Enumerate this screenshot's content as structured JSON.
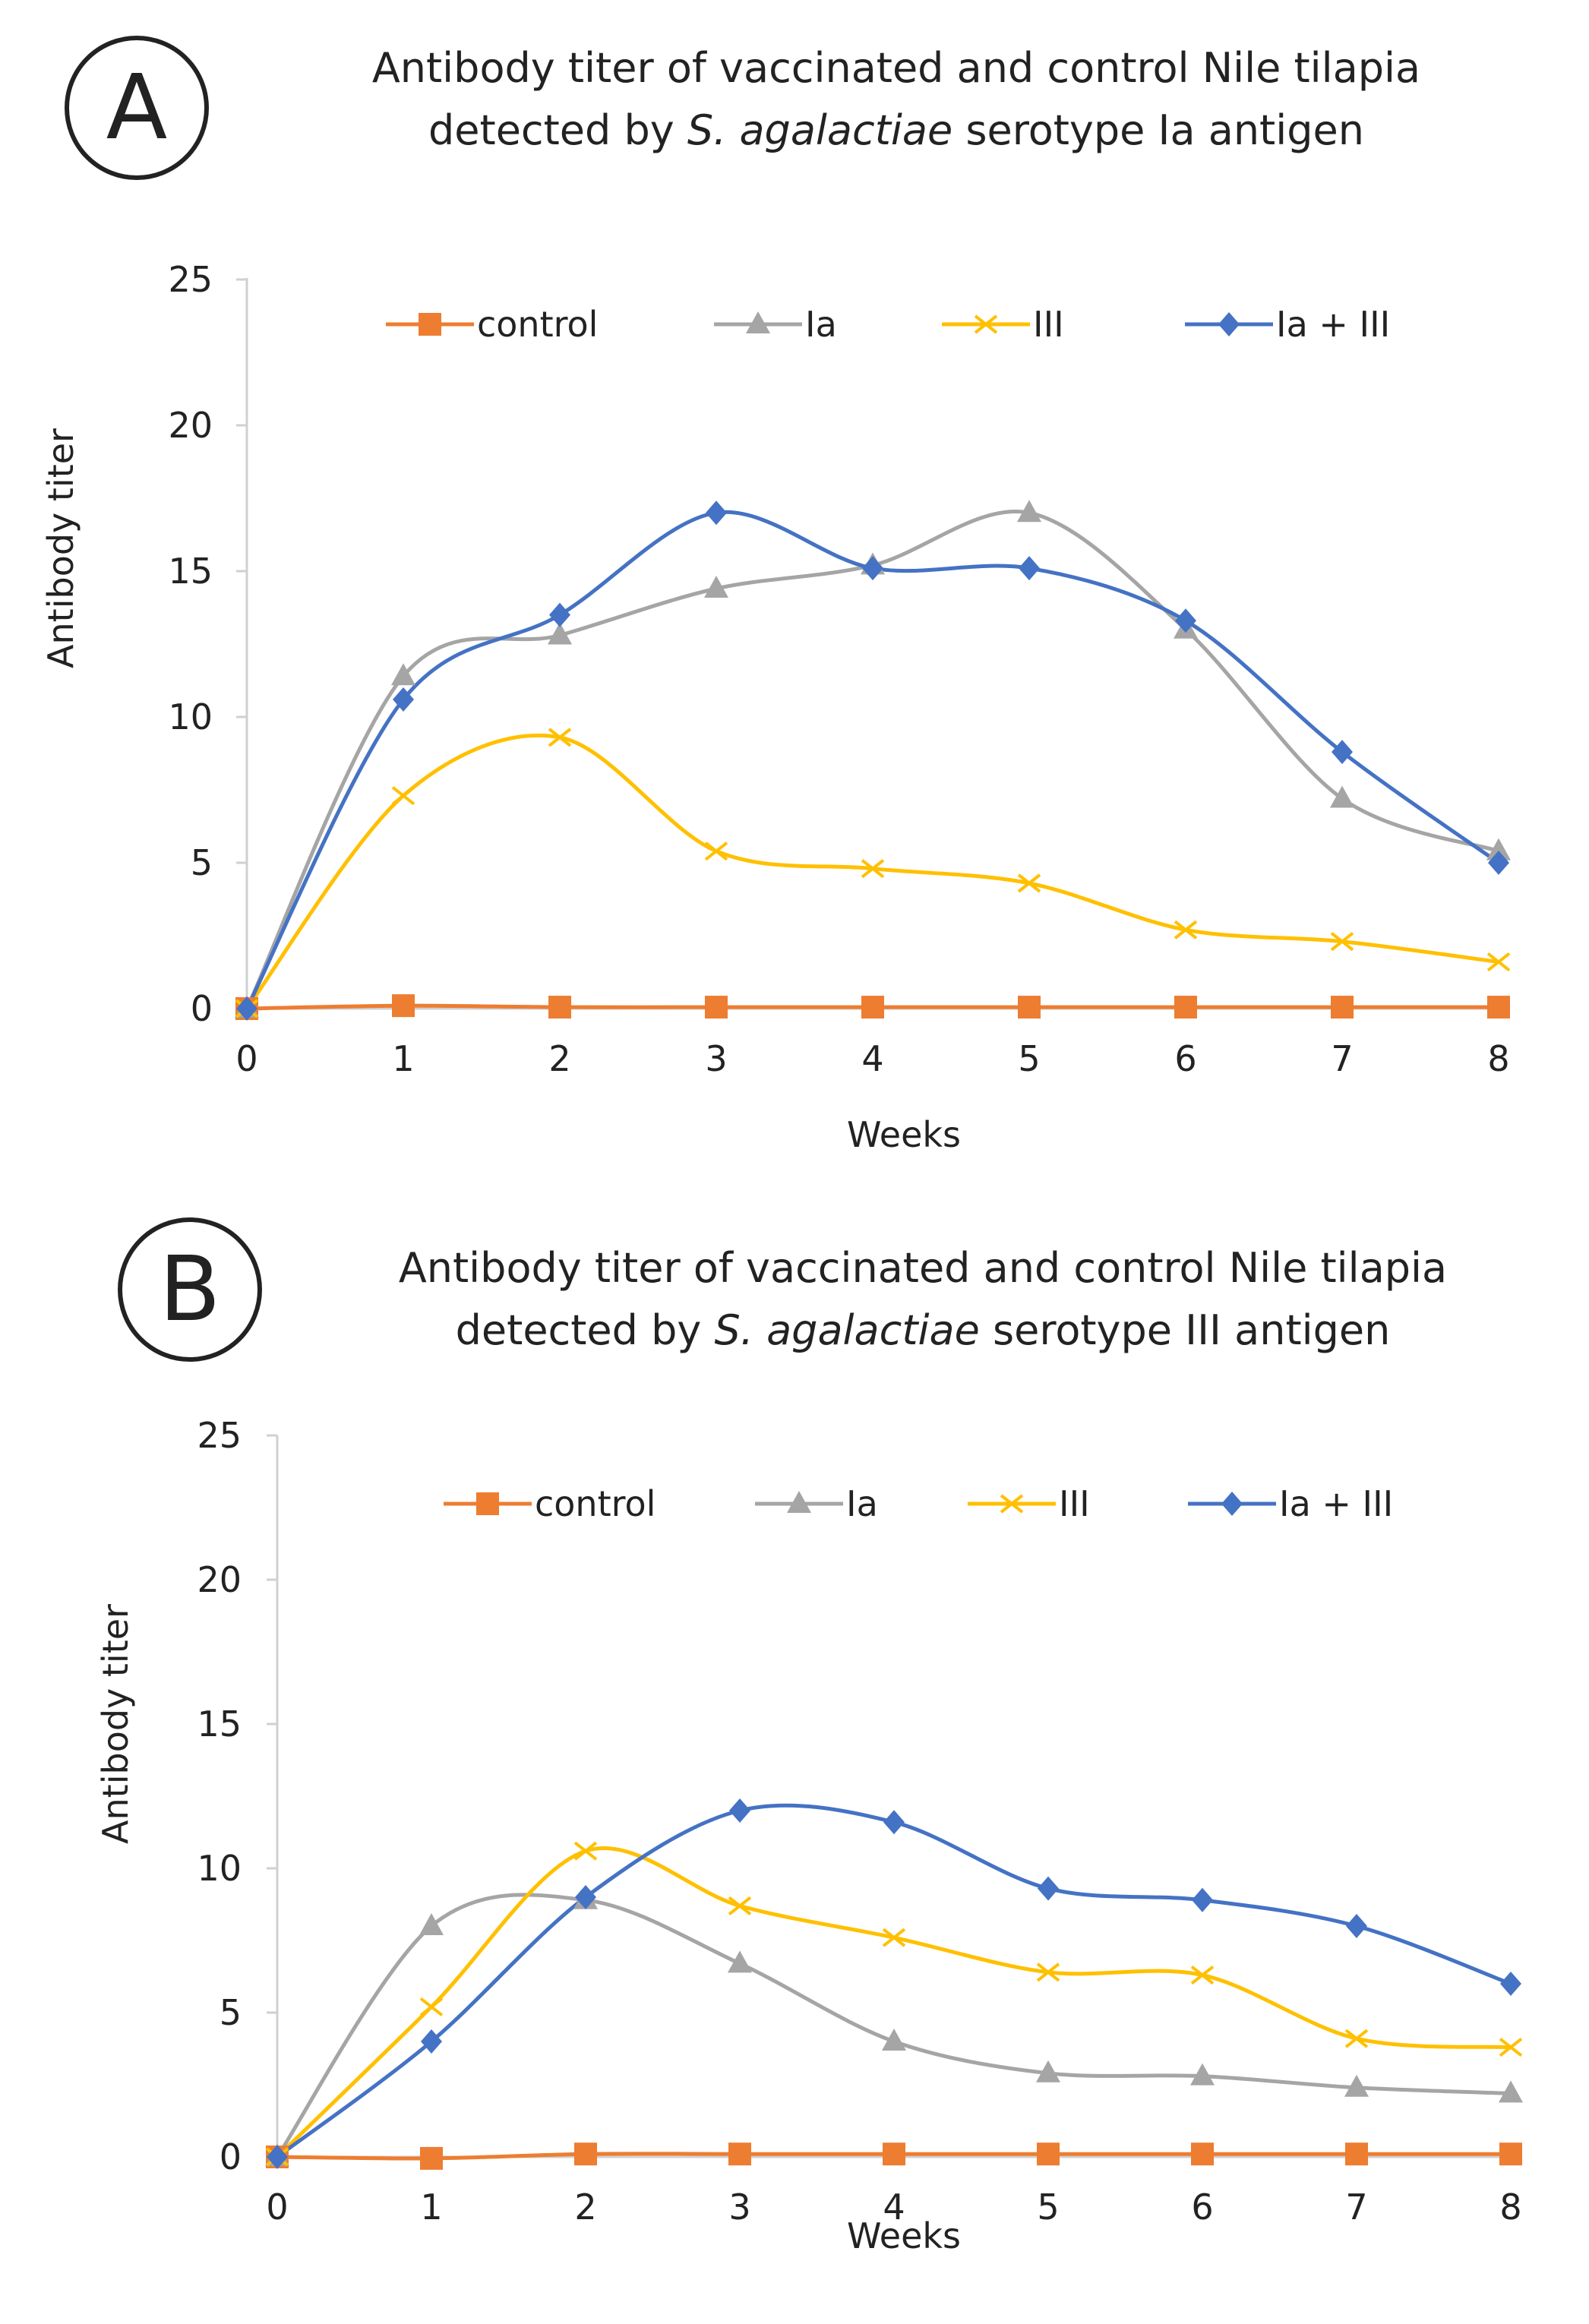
{
  "chart_data": [
    {
      "type": "line",
      "panel_label": "A",
      "title_line1": "Antibody titer of vaccinated and control Nile tilapia",
      "title_line2_pre": "detected by ",
      "title_line2_italic": "S. agalactiae",
      "title_line2_post": " serotype Ia antigen",
      "xlabel": "Weeks",
      "ylabel": "Antibody  titer",
      "x": [
        0,
        1,
        2,
        3,
        4,
        5,
        6,
        7,
        8
      ],
      "ylim": [
        0,
        25
      ],
      "yticks": [
        0,
        5,
        10,
        15,
        20,
        25
      ],
      "legend_position": "top",
      "series": [
        {
          "name": "control",
          "color": "#ED7D31",
          "marker": "square",
          "values": [
            0,
            0.1,
            0.05,
            0.05,
            0.05,
            0.05,
            0.05,
            0.05,
            0.05
          ]
        },
        {
          "name": "Ia",
          "color": "#A5A5A5",
          "marker": "triangle",
          "values": [
            0,
            11.4,
            12.8,
            14.4,
            15.2,
            17,
            13,
            7.2,
            5.4
          ]
        },
        {
          "name": "III",
          "color": "#FFC000",
          "marker": "x",
          "values": [
            0,
            7.3,
            9.3,
            5.4,
            4.8,
            4.3,
            2.7,
            2.3,
            1.6
          ]
        },
        {
          "name": "Ia + III",
          "color": "#4472C4",
          "marker": "diamond",
          "values": [
            0,
            10.6,
            13.5,
            17,
            15.1,
            15.1,
            13.3,
            8.8,
            5
          ]
        }
      ]
    },
    {
      "type": "line",
      "panel_label": "B",
      "title_line1": "Antibody titer of vaccinated and control Nile tilapia",
      "title_line2_pre": "detected by ",
      "title_line2_italic": "S. agalactiae",
      "title_line2_post": " serotype III antigen",
      "xlabel": "Weeks",
      "ylabel": "Antibody  titer",
      "x": [
        0,
        1,
        2,
        3,
        4,
        5,
        6,
        7,
        8
      ],
      "ylim": [
        0,
        25
      ],
      "yticks": [
        0,
        5,
        10,
        15,
        20,
        25
      ],
      "legend_position": "top",
      "series": [
        {
          "name": "control",
          "color": "#ED7D31",
          "marker": "square",
          "values": [
            0,
            -0.05,
            0.1,
            0.1,
            0.1,
            0.1,
            0.1,
            0.1,
            0.1
          ]
        },
        {
          "name": "Ia",
          "color": "#A5A5A5",
          "marker": "triangle",
          "values": [
            0,
            8,
            8.9,
            6.7,
            4,
            2.9,
            2.8,
            2.4,
            2.2
          ]
        },
        {
          "name": "III",
          "color": "#FFC000",
          "marker": "x",
          "values": [
            0,
            5.2,
            10.6,
            8.7,
            7.6,
            6.4,
            6.3,
            4.1,
            3.8
          ]
        },
        {
          "name": "Ia + III",
          "color": "#4472C4",
          "marker": "diamond",
          "values": [
            0,
            4,
            9,
            12,
            11.6,
            9.3,
            8.9,
            8,
            6
          ]
        }
      ]
    }
  ]
}
